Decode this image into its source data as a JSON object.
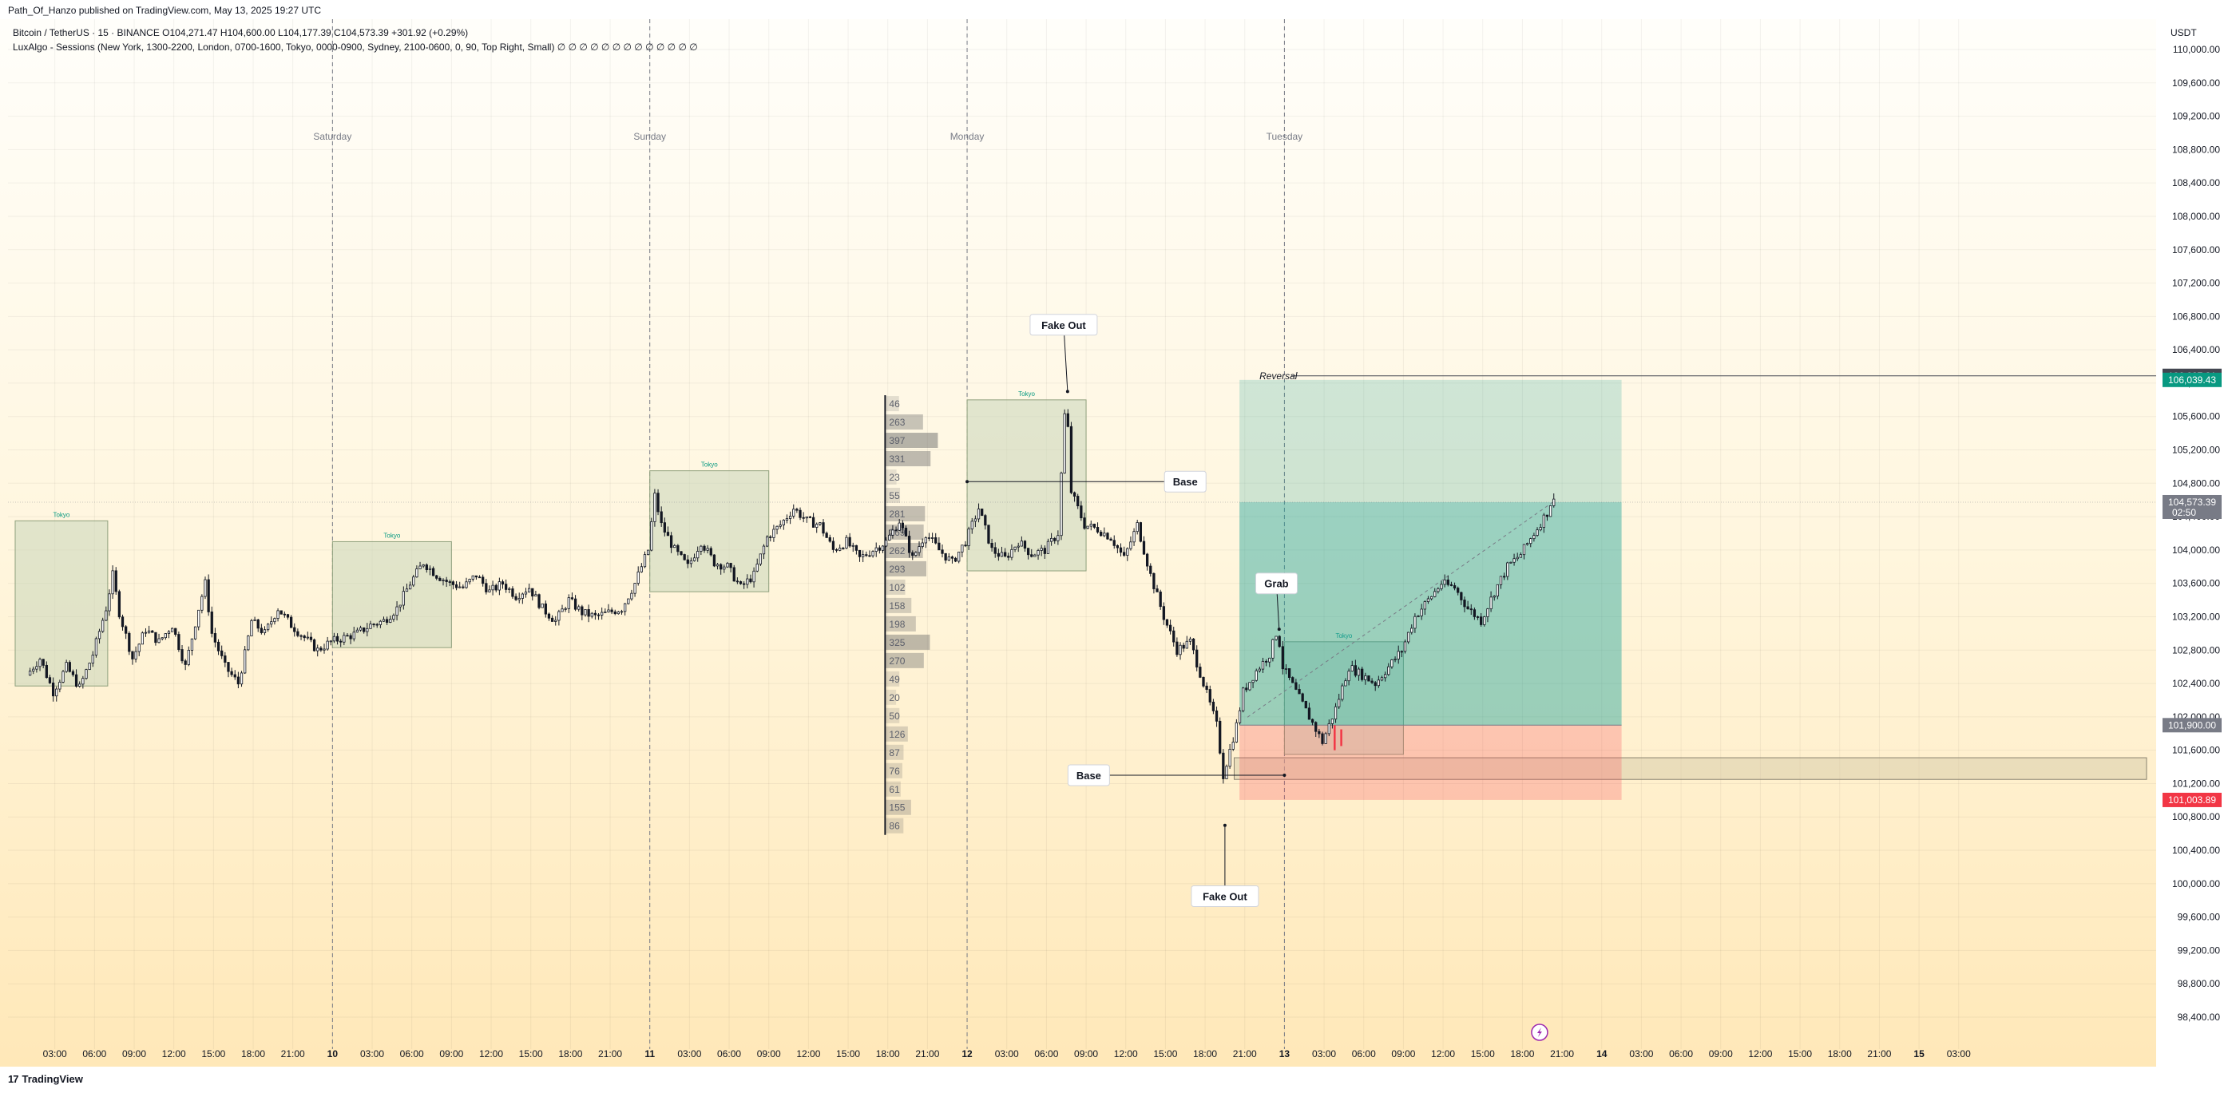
{
  "publisher_line": "Path_Of_Hanzo published on TradingView.com, May 13, 2025 19:27 UTC",
  "legend": {
    "symbol_line": "Bitcoin / TetherUS · 15 · BINANCE  O104,271.47  H104,600.00  L104,177.39  C104,573.39  +301.92 (+0.29%)",
    "indicator_line": "LuxAlgo - Sessions (New York, 1300-2200, London, 0700-1600, Tokyo, 0000-0900, Sydney, 2100-0600, 0, 90, Top Right, Small)  ∅ ∅ ∅ ∅ ∅ ∅ ∅ ∅ ∅ ∅ ∅ ∅ ∅"
  },
  "brand": "TradingView",
  "currency": "USDT",
  "colors": {
    "bull_candle": "#ffffff",
    "bear_candle": "#131722",
    "tokyo_box": "#c8d5b9",
    "profit_zone": "#26a69a",
    "loss_zone": "#f7525f",
    "price_tag": "#787b86",
    "target_tag": "#089981",
    "stop_tag": "#f23645",
    "reversal_tag": "#434651"
  },
  "chart_data": {
    "type": "candlestick",
    "symbol": "Bitcoin / TetherUS",
    "interval": "15",
    "exchange": "BINANCE",
    "ohlc_last": {
      "open": 104271.47,
      "high": 104600.0,
      "low": 104177.39,
      "close": 104573.39,
      "change": 301.92,
      "change_pct": 0.29
    },
    "y_axis": {
      "ticks": [
        "98,400.00",
        "98,800.00",
        "99,200.00",
        "99,600.00",
        "100,000.00",
        "100,400.00",
        "100,800.00",
        "101,200.00",
        "101,600.00",
        "102,000.00",
        "102,400.00",
        "102,800.00",
        "103,200.00",
        "103,600.00",
        "104,000.00",
        "104,400.00",
        "104,800.00",
        "105,200.00",
        "105,600.00",
        "106,000.00",
        "106,400.00",
        "106,800.00",
        "107,200.00",
        "107,600.00",
        "108,000.00",
        "108,400.00",
        "108,800.00",
        "109,200.00",
        "109,600.00",
        "110,000.00"
      ],
      "ylim": [
        98300,
        110050
      ]
    },
    "x_axis": {
      "ticks": [
        "03:00",
        "06:00",
        "09:00",
        "12:00",
        "15:00",
        "18:00",
        "21:00",
        "10",
        "03:00",
        "06:00",
        "09:00",
        "12:00",
        "15:00",
        "18:00",
        "21:00",
        "11",
        "03:00",
        "06:00",
        "09:00",
        "12:00",
        "15:00",
        "18:00",
        "21:00",
        "12",
        "03:00",
        "06:00",
        "09:00",
        "12:00",
        "15:00",
        "18:00",
        "21:00",
        "13",
        "03:00",
        "06:00",
        "09:00",
        "12:00",
        "15:00",
        "18:00",
        "21:00",
        "14",
        "03:00",
        "06:00",
        "09:00",
        "12:00",
        "15:00",
        "18:00",
        "21:00",
        "15",
        "03:00"
      ],
      "day_labels": [
        {
          "label": "Saturday",
          "hour": 72
        },
        {
          "label": "Sunday",
          "hour": 96
        },
        {
          "label": "Monday",
          "hour": 120
        },
        {
          "label": "Tuesday",
          "hour": 144
        }
      ],
      "hours_start": 0,
      "hours_end": 168
    },
    "price_path": [
      [
        49.0,
        102500
      ],
      [
        50,
        102700
      ],
      [
        51,
        102300
      ],
      [
        52,
        102600
      ],
      [
        53,
        102350
      ],
      [
        54,
        102750
      ],
      [
        55,
        103300
      ],
      [
        55.5,
        103700
      ],
      [
        56,
        103250
      ],
      [
        57,
        102700
      ],
      [
        58,
        103050
      ],
      [
        59,
        102900
      ],
      [
        60,
        103100
      ],
      [
        61,
        102600
      ],
      [
        62,
        103300
      ],
      [
        62.5,
        103600
      ],
      [
        63,
        103000
      ],
      [
        64,
        102600
      ],
      [
        65,
        102400
      ],
      [
        65.5,
        102750
      ],
      [
        66,
        103150
      ],
      [
        67,
        103000
      ],
      [
        68,
        103300
      ],
      [
        69,
        103100
      ],
      [
        70,
        102950
      ],
      [
        71,
        102800
      ],
      [
        72,
        102900
      ],
      [
        73,
        102950
      ],
      [
        74,
        103000
      ],
      [
        75,
        103100
      ],
      [
        76,
        103150
      ],
      [
        77,
        103300
      ],
      [
        78,
        103600
      ],
      [
        79,
        103850
      ],
      [
        80,
        103700
      ],
      [
        81,
        103600
      ],
      [
        82,
        103550
      ],
      [
        83,
        103700
      ],
      [
        84,
        103500
      ],
      [
        85,
        103600
      ],
      [
        86,
        103450
      ],
      [
        87,
        103550
      ],
      [
        88,
        103300
      ],
      [
        89,
        103150
      ],
      [
        90,
        103400
      ],
      [
        91,
        103250
      ],
      [
        92,
        103200
      ],
      [
        93,
        103250
      ],
      [
        94,
        103300
      ],
      [
        95,
        103600
      ],
      [
        96,
        104000
      ],
      [
        96.5,
        104650
      ],
      [
        97,
        104300
      ],
      [
        98,
        104000
      ],
      [
        99,
        103800
      ],
      [
        100,
        104100
      ],
      [
        101,
        103850
      ],
      [
        102,
        103800
      ],
      [
        103,
        103550
      ],
      [
        104,
        103700
      ],
      [
        105,
        104150
      ],
      [
        106,
        104300
      ],
      [
        107,
        104500
      ],
      [
        108,
        104350
      ],
      [
        109,
        104300
      ],
      [
        110,
        104000
      ],
      [
        111,
        104100
      ],
      [
        112,
        103900
      ],
      [
        113,
        104000
      ],
      [
        114,
        104100
      ],
      [
        115,
        104350
      ],
      [
        116,
        103900
      ],
      [
        117,
        104200
      ],
      [
        118,
        104000
      ],
      [
        119,
        103850
      ],
      [
        120,
        104100
      ],
      [
        121,
        104500
      ],
      [
        122,
        104000
      ],
      [
        123,
        103900
      ],
      [
        124,
        104100
      ],
      [
        125,
        103950
      ],
      [
        126,
        104000
      ],
      [
        127,
        104200
      ],
      [
        127.6,
        105900
      ],
      [
        128,
        104700
      ],
      [
        129,
        104300
      ],
      [
        130,
        104250
      ],
      [
        131,
        104150
      ],
      [
        132,
        103900
      ],
      [
        133,
        104300
      ],
      [
        134,
        103700
      ],
      [
        135,
        103200
      ],
      [
        136,
        102800
      ],
      [
        137,
        102900
      ],
      [
        138,
        102400
      ],
      [
        139,
        101900
      ],
      [
        139.5,
        101300
      ],
      [
        140,
        101600
      ],
      [
        140.5,
        101900
      ],
      [
        141,
        102300
      ],
      [
        142,
        102550
      ],
      [
        143,
        102750
      ],
      [
        143.6,
        103050
      ],
      [
        144,
        102600
      ],
      [
        145,
        102300
      ],
      [
        146,
        102000
      ],
      [
        147,
        101700
      ],
      [
        148,
        102100
      ],
      [
        149,
        102600
      ],
      [
        150,
        102500
      ],
      [
        151,
        102400
      ],
      [
        152,
        102600
      ],
      [
        153,
        102800
      ],
      [
        154,
        103200
      ],
      [
        155,
        103400
      ],
      [
        156,
        103600
      ],
      [
        157,
        103550
      ],
      [
        158,
        103300
      ],
      [
        159,
        103150
      ],
      [
        160,
        103500
      ],
      [
        161,
        103800
      ],
      [
        162,
        103950
      ],
      [
        163,
        104200
      ],
      [
        164,
        104450
      ],
      [
        164.3,
        104580
      ]
    ],
    "tokyo_sessions": [
      {
        "label": "Tokyo",
        "x0": 48.0,
        "x1": 55.0,
        "y_low": 102370,
        "y_high": 104350
      },
      {
        "label": "Tokyo",
        "x0": 72.0,
        "x1": 81.0,
        "y_low": 102830,
        "y_high": 104100
      },
      {
        "label": "Tokyo",
        "x0": 96.0,
        "x1": 105.0,
        "y_low": 103500,
        "y_high": 104950
      },
      {
        "label": "Tokyo",
        "x0": 120.0,
        "x1": 129.0,
        "y_low": 103750,
        "y_high": 105800
      },
      {
        "label": "Tokyo",
        "x0": 144.0,
        "x1": 153.0,
        "y_low": 101550,
        "y_high": 102900
      }
    ],
    "volume_profile": {
      "x": 113.8,
      "rows": [
        {
          "y": 105750,
          "value": 46
        },
        {
          "y": 105530,
          "value": 263
        },
        {
          "y": 105310,
          "value": 397
        },
        {
          "y": 105090,
          "value": 331
        },
        {
          "y": 104870,
          "value": 23
        },
        {
          "y": 104650,
          "value": 55
        },
        {
          "y": 104430,
          "value": 281
        },
        {
          "y": 104210,
          "value": 269
        },
        {
          "y": 103990,
          "value": 262
        },
        {
          "y": 103770,
          "value": 293
        },
        {
          "y": 103550,
          "value": 102
        },
        {
          "y": 103330,
          "value": 158
        },
        {
          "y": 103110,
          "value": 198
        },
        {
          "y": 102890,
          "value": 325
        },
        {
          "y": 102670,
          "value": 270
        },
        {
          "y": 102450,
          "value": 49
        },
        {
          "y": 102230,
          "value": 20
        },
        {
          "y": 102010,
          "value": 50
        },
        {
          "y": 101790,
          "value": 126
        },
        {
          "y": 101570,
          "value": 87
        },
        {
          "y": 101350,
          "value": 76
        },
        {
          "y": 101130,
          "value": 61
        },
        {
          "y": 100910,
          "value": 155
        },
        {
          "y": 100690,
          "value": 86
        }
      ]
    },
    "position": {
      "x0": 140.6,
      "x1": 169.5,
      "entry": 101900.0,
      "target": 106039.43,
      "stop": 101003.89,
      "entry_label": "101,900.00",
      "target_label": "106,039.43",
      "stop_label": "101,003.89"
    },
    "support_zone": {
      "x0": 140.2,
      "x1": 168.0,
      "y_low": 101250,
      "y_high": 101510
    },
    "reversal_line": {
      "label": "Reversal",
      "price": 106087.81,
      "price_label": "106,087.81",
      "x0": 140.6
    },
    "current_price": {
      "value": 104573.39,
      "label": "104,573.39",
      "countdown": "02:50"
    },
    "annotations": [
      {
        "text": "Fake Out",
        "anchor_x": 127.6,
        "anchor_y": 105900,
        "box_x": 127.3,
        "box_y": 106700
      },
      {
        "text": "Base",
        "anchor_x": 120.0,
        "anchor_y": 104820,
        "box_x": 136.5,
        "box_y": 104820
      },
      {
        "text": "Grab",
        "anchor_x": 143.6,
        "anchor_y": 103050,
        "box_x": 143.4,
        "box_y": 103600
      },
      {
        "text": "Base",
        "anchor_x": 144.0,
        "anchor_y": 101300,
        "box_x": 129.2,
        "box_y": 101300
      },
      {
        "text": "Fake Out",
        "anchor_x": 139.5,
        "anchor_y": 100700,
        "box_x": 139.5,
        "box_y": 99850
      }
    ]
  }
}
